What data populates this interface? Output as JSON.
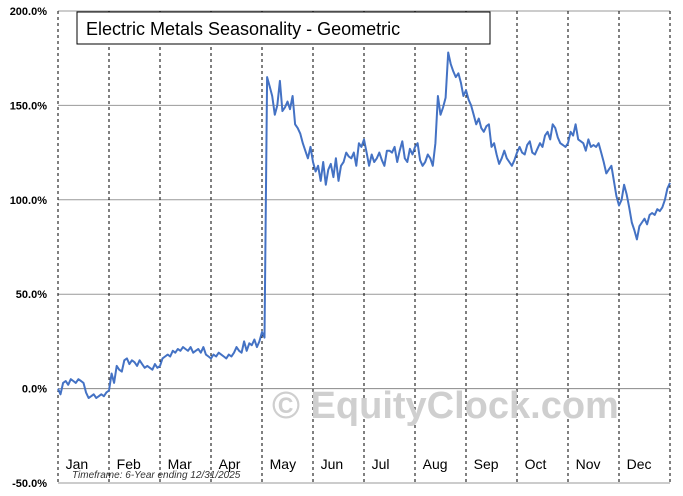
{
  "chart_data": {
    "type": "line",
    "title": "Electric Metals Seasonality - Geometric",
    "footnote": "Timeframe: 6-Year ending 12/31/2025",
    "watermark": "© EquityClock.com",
    "ylim": [
      -50,
      200
    ],
    "y_ticks": [
      "200.0%",
      "150.0%",
      "100.0%",
      "50.0%",
      "0.0%",
      "-50.0%"
    ],
    "y_tick_values": [
      200,
      150,
      100,
      50,
      0,
      -50
    ],
    "months": [
      "Jan",
      "Feb",
      "Mar",
      "Apr",
      "May",
      "Jun",
      "Jul",
      "Aug",
      "Sep",
      "Oct",
      "Nov",
      "Dec"
    ],
    "grid": true,
    "line_color": "#4472c4",
    "series": [
      {
        "x": [
          0.0,
          0.05,
          0.1,
          0.15,
          0.2,
          0.25,
          0.3,
          0.35,
          0.4,
          0.45,
          0.5,
          0.55,
          0.6,
          0.65,
          0.7,
          0.75,
          0.8,
          0.85,
          0.9,
          0.95,
          1.0,
          1.05,
          1.1,
          1.15,
          1.2,
          1.25,
          1.3,
          1.35,
          1.4,
          1.45,
          1.5,
          1.55,
          1.6,
          1.65,
          1.7,
          1.75,
          1.8,
          1.85,
          1.9,
          1.95,
          2.0,
          2.05,
          2.1,
          2.15,
          2.2,
          2.25,
          2.3,
          2.35,
          2.4,
          2.45,
          2.5,
          2.55,
          2.6,
          2.65,
          2.7,
          2.75,
          2.8,
          2.85,
          2.9,
          2.95,
          3.0,
          3.05,
          3.1,
          3.15,
          3.2,
          3.25,
          3.3,
          3.35,
          3.4,
          3.45,
          3.5,
          3.55,
          3.6,
          3.65,
          3.7,
          3.75,
          3.8,
          3.85,
          3.9,
          3.95,
          4.0,
          4.05,
          4.1,
          4.15,
          4.2,
          4.25,
          4.3,
          4.35,
          4.4,
          4.45,
          4.5,
          4.55,
          4.6,
          4.65,
          4.7,
          4.75,
          4.8,
          4.85,
          4.9,
          4.95,
          5.0,
          5.05,
          5.1,
          5.15,
          5.2,
          5.25,
          5.3,
          5.35,
          5.4,
          5.45,
          5.5,
          5.55,
          5.6,
          5.65,
          5.7,
          5.75,
          5.8,
          5.85,
          5.9,
          5.95,
          6.0,
          6.05,
          6.1,
          6.15,
          6.2,
          6.25,
          6.3,
          6.35,
          6.4,
          6.45,
          6.5,
          6.55,
          6.6,
          6.65,
          6.7,
          6.75,
          6.8,
          6.85,
          6.9,
          6.95,
          7.0,
          7.05,
          7.1,
          7.15,
          7.2,
          7.25,
          7.3,
          7.35,
          7.4,
          7.45,
          7.5,
          7.55,
          7.6,
          7.65,
          7.7,
          7.75,
          7.8,
          7.85,
          7.9,
          7.95,
          8.0,
          8.05,
          8.1,
          8.15,
          8.2,
          8.25,
          8.3,
          8.35,
          8.4,
          8.45,
          8.5,
          8.55,
          8.6,
          8.65,
          8.7,
          8.75,
          8.8,
          8.85,
          8.9,
          8.95,
          9.0,
          9.05,
          9.1,
          9.15,
          9.2,
          9.25,
          9.3,
          9.35,
          9.4,
          9.45,
          9.5,
          9.55,
          9.6,
          9.65,
          9.7,
          9.75,
          9.8,
          9.85,
          9.9,
          9.95,
          10.0,
          10.05,
          10.1,
          10.15,
          10.2,
          10.25,
          10.3,
          10.35,
          10.4,
          10.45,
          10.5,
          10.55,
          10.6,
          10.65,
          10.7,
          10.75,
          10.8,
          10.85,
          10.9,
          10.95,
          11.0,
          11.05,
          11.1,
          11.15,
          11.2,
          11.25,
          11.3,
          11.35,
          11.4,
          11.45,
          11.5,
          11.55,
          11.6,
          11.65,
          11.7,
          11.75,
          11.8,
          11.85,
          11.9,
          11.95,
          12.0
        ],
        "values": [
          0,
          -3,
          3,
          4,
          2,
          5,
          4,
          3,
          5,
          4,
          3,
          -2,
          -5,
          -4,
          -3,
          -5,
          -4,
          -3,
          -4,
          -2,
          -1,
          8,
          3,
          12,
          10,
          9,
          15,
          16,
          13,
          15,
          14,
          12,
          15,
          13,
          11,
          12,
          11,
          10,
          13,
          11,
          12,
          16,
          17,
          18,
          17,
          20,
          19,
          21,
          20,
          22,
          21,
          20,
          22,
          19,
          20,
          21,
          19,
          22,
          18,
          17,
          16,
          18,
          17,
          19,
          18,
          17,
          16,
          18,
          17,
          19,
          22,
          20,
          19,
          25,
          20,
          24,
          23,
          26,
          22,
          25,
          30,
          27,
          165,
          160,
          155,
          145,
          150,
          163,
          147,
          149,
          152,
          148,
          155,
          140,
          138,
          135,
          130,
          126,
          122,
          128,
          120,
          115,
          118,
          110,
          120,
          108,
          116,
          119,
          112,
          122,
          110,
          118,
          120,
          125,
          123,
          122,
          125,
          118,
          130,
          128,
          132,
          125,
          118,
          124,
          120,
          122,
          125,
          121,
          118,
          126,
          126,
          125,
          128,
          120,
          126,
          131,
          122,
          120,
          127,
          124,
          128,
          130,
          121,
          118,
          120,
          124,
          122,
          118,
          130,
          155,
          145,
          149,
          154,
          178,
          172,
          168,
          165,
          167,
          162,
          155,
          158,
          153,
          150,
          145,
          140,
          143,
          138,
          136,
          139,
          140,
          128,
          130,
          124,
          119,
          122,
          126,
          122,
          120,
          118,
          121,
          125,
          128,
          125,
          124,
          129,
          131,
          125,
          124,
          127,
          130,
          128,
          134,
          136,
          132,
          140,
          138,
          133,
          130,
          129,
          128,
          130,
          136,
          134,
          140,
          132,
          131,
          130,
          126,
          132,
          128,
          129,
          128,
          130,
          125,
          120,
          114,
          116,
          118,
          110,
          102,
          97,
          100,
          108,
          103,
          96,
          88,
          84,
          79,
          86,
          88,
          90,
          87,
          92,
          93,
          92,
          95,
          94,
          96,
          100,
          106,
          109
        ]
      }
    ]
  }
}
